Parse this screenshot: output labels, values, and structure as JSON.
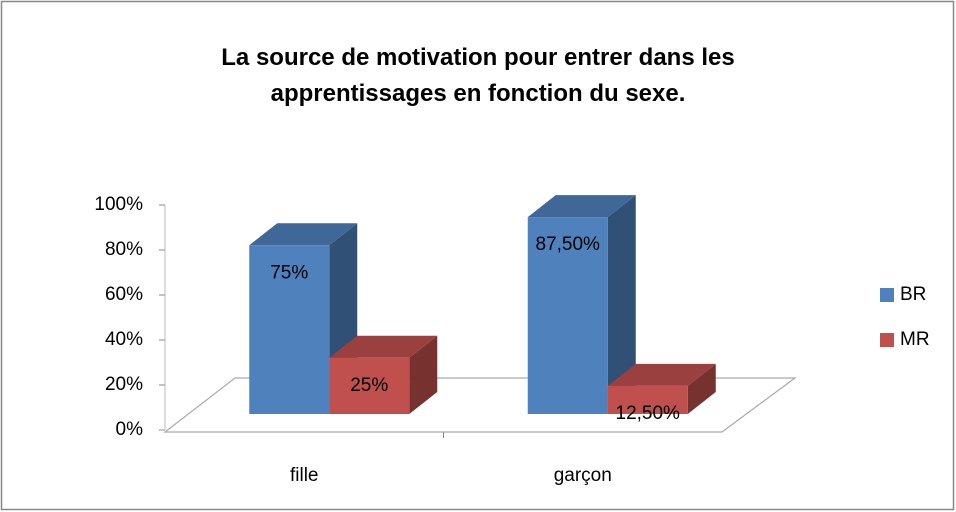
{
  "chart_data": {
    "type": "bar3d",
    "title": "La source de motivation pour entrer dans les apprentissages en fonction du sexe.",
    "categories": [
      "fille",
      "garçon"
    ],
    "series": [
      {
        "name": "BR",
        "color": "#4f81bd",
        "values": [
          75,
          87.5
        ],
        "value_labels": [
          "75%",
          "87,50%"
        ]
      },
      {
        "name": "MR",
        "color": "#c0504d",
        "values": [
          25,
          12.5
        ],
        "value_labels": [
          "25%",
          "12,50%"
        ]
      }
    ],
    "ylim": [
      0,
      100
    ],
    "yticks": [
      {
        "value": 0,
        "label": "0%"
      },
      {
        "value": 20,
        "label": "20%"
      },
      {
        "value": 40,
        "label": "40%"
      },
      {
        "value": 60,
        "label": "60%"
      },
      {
        "value": 80,
        "label": "80%"
      },
      {
        "value": 100,
        "label": "100%"
      }
    ],
    "legend": "right"
  }
}
